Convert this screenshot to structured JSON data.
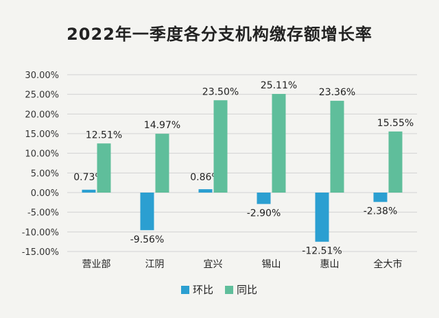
{
  "chart_data": {
    "type": "bar",
    "title": "2022年一季度各分支机构缴存额增长率",
    "categories": [
      "营业部",
      "江阴",
      "宜兴",
      "锡山",
      "惠山",
      "全大市"
    ],
    "series": [
      {
        "name": "环比",
        "color": "#2b9fd1",
        "values": [
          0.73,
          -9.56,
          0.86,
          -2.9,
          -12.51,
          -2.38
        ],
        "labels": [
          "0.73%",
          "-9.56%",
          "0.86%",
          "-2.90%",
          "-12.51%",
          "-2.38%"
        ]
      },
      {
        "name": "同比",
        "color": "#5fbe9b",
        "values": [
          12.51,
          14.97,
          23.5,
          25.11,
          23.36,
          15.55
        ],
        "labels": [
          "12.51%",
          "14.97%",
          "23.50%",
          "25.11%",
          "23.36%",
          "15.55%"
        ]
      }
    ],
    "y_ticks": [
      "30.00%",
      "25.00%",
      "20.00%",
      "15.00%",
      "10.00%",
      "5.00%",
      "0.00%",
      "-5.00%",
      "-10.00%",
      "-15.00%"
    ],
    "ylim": [
      -15,
      30
    ],
    "grid": true,
    "legend_position": "bottom-center"
  }
}
